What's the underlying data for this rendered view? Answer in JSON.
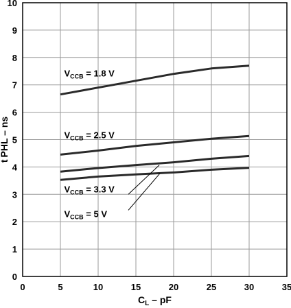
{
  "chart_data": {
    "type": "line",
    "xlabel": {
      "main": "C",
      "sub": "L",
      "rest": " – pF"
    },
    "ylabel": {
      "main": "t",
      "sub": "PHL",
      "rest": " – ns"
    },
    "xlim": [
      0,
      35
    ],
    "ylim": [
      0,
      10
    ],
    "xticks": [
      0,
      5,
      10,
      15,
      20,
      25,
      30,
      35
    ],
    "yticks": [
      0,
      1,
      2,
      3,
      4,
      5,
      6,
      7,
      8,
      9,
      10
    ],
    "grid": true,
    "line_color": "#2a2a2a",
    "series": [
      {
        "name": "V_CCB = 1.8 V",
        "label": {
          "main": "V",
          "sub": "CCB",
          "rest": " = 1.8 V"
        },
        "x": [
          5,
          10,
          15,
          20,
          25,
          30
        ],
        "y": [
          6.65,
          6.9,
          7.15,
          7.4,
          7.6,
          7.7
        ]
      },
      {
        "name": "V_CCB = 2.5 V",
        "label": {
          "main": "V",
          "sub": "CCB",
          "rest": " = 2.5 V"
        },
        "x": [
          5,
          10,
          15,
          20,
          25,
          30
        ],
        "y": [
          4.45,
          4.6,
          4.77,
          4.9,
          5.03,
          5.13
        ]
      },
      {
        "name": "V_CCB = 3.3 V",
        "label": {
          "main": "V",
          "sub": "CCB",
          "rest": " = 3.3 V"
        },
        "x": [
          5,
          10,
          15,
          20,
          25,
          30
        ],
        "y": [
          3.83,
          3.96,
          4.07,
          4.17,
          4.3,
          4.4
        ]
      },
      {
        "name": "V_CCB = 5 V",
        "label": {
          "main": "V",
          "sub": "CCB",
          "rest": " = 5 V"
        },
        "x": [
          5,
          10,
          15,
          20,
          25,
          30
        ],
        "y": [
          3.53,
          3.65,
          3.73,
          3.8,
          3.9,
          3.97
        ]
      }
    ]
  }
}
